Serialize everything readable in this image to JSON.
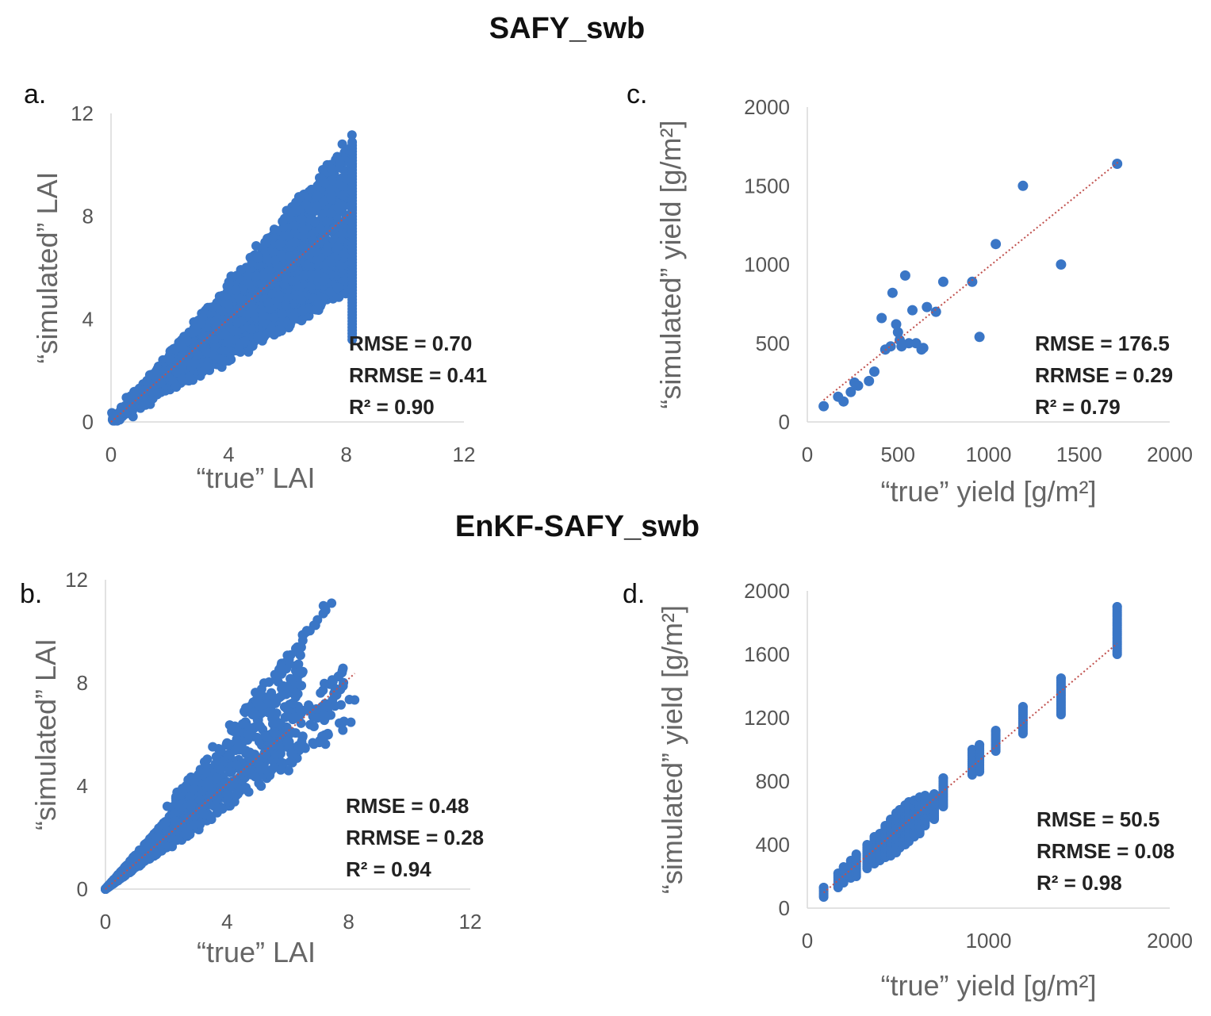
{
  "titles": {
    "top": "SAFY_swb",
    "bottom": "EnKF-SAFY_swb"
  },
  "colors": {
    "points": "#3a76c6",
    "trendline": "#c0504d",
    "axis": "#d9d9d9"
  },
  "chart_data": [
    {
      "id": "a",
      "type": "scatter",
      "panel_label": "a.",
      "xlabel": "“true” LAI",
      "ylabel": "“simulated” LAI",
      "xlim": [
        0,
        12
      ],
      "ylim": [
        0,
        12
      ],
      "xticks": [
        "0",
        "4",
        "8",
        "12"
      ],
      "yticks": [
        "0",
        "4",
        "8",
        "12"
      ],
      "xtick_values": [
        0,
        4,
        8,
        12
      ],
      "ytick_values": [
        0,
        4,
        8,
        12
      ],
      "stats": [
        "RMSE = 0.70",
        "RRMSE = 0.41",
        "R² = 0.90"
      ],
      "trendline": {
        "slope": 1.0,
        "intercept": 0.0,
        "x_range": [
          0,
          8.2
        ]
      },
      "cloud": {
        "kind": "dense",
        "x_max": 8.2,
        "spread": 0.33,
        "upper_ratio": 1.35,
        "lower_ratio": 0.62,
        "n": 2200,
        "seed": 7
      }
    },
    {
      "id": "b",
      "type": "scatter",
      "panel_label": "b.",
      "xlabel": "“true” LAI",
      "ylabel": "“simulated” LAI",
      "xlim": [
        0,
        12
      ],
      "ylim": [
        0,
        12
      ],
      "xticks": [
        "0",
        "4",
        "8",
        "12"
      ],
      "yticks": [
        "0",
        "4",
        "8",
        "12"
      ],
      "xtick_values": [
        0,
        4,
        8,
        12
      ],
      "ytick_values": [
        0,
        4,
        8,
        12
      ],
      "stats": [
        "RMSE = 0.48",
        "RRMSE = 0.28",
        "R² = 0.94"
      ],
      "trendline": {
        "slope": 1.02,
        "intercept": 0.0,
        "x_range": [
          0,
          8.2
        ]
      },
      "cloud": {
        "kind": "rays",
        "slopes": [
          1.5,
          1.3,
          1.08,
          1.0,
          0.93,
          0.82
        ],
        "ray_x_max": [
          7.6,
          6.6,
          8.1,
          8.2,
          8.2,
          8.2
        ],
        "n_core": 900,
        "n_ray": 70,
        "seed": 11
      }
    },
    {
      "id": "c",
      "type": "scatter",
      "panel_label": "c.",
      "xlabel": "“true” yield [g/m²]",
      "ylabel": "“simulated” yield [g/m²]",
      "xlim": [
        0,
        2000
      ],
      "ylim": [
        0,
        2000
      ],
      "xticks": [
        "0",
        "500",
        "1000",
        "1500",
        "2000"
      ],
      "yticks": [
        "0",
        "500",
        "1000",
        "1500",
        "2000"
      ],
      "xtick_values": [
        0,
        500,
        1000,
        1500,
        2000
      ],
      "ytick_values": [
        0,
        500,
        1000,
        1500,
        2000
      ],
      "stats": [
        "RMSE = 176.5",
        "RRMSE = 0.29",
        "R² = 0.79"
      ],
      "trendline": {
        "slope": 0.93,
        "intercept": 55,
        "x_range": [
          90,
          1720
        ]
      },
      "points": [
        [
          90,
          100
        ],
        [
          170,
          160
        ],
        [
          200,
          130
        ],
        [
          240,
          190
        ],
        [
          260,
          250
        ],
        [
          280,
          230
        ],
        [
          340,
          260
        ],
        [
          370,
          320
        ],
        [
          410,
          660
        ],
        [
          430,
          460
        ],
        [
          460,
          480
        ],
        [
          470,
          820
        ],
        [
          490,
          620
        ],
        [
          500,
          570
        ],
        [
          510,
          520
        ],
        [
          520,
          480
        ],
        [
          540,
          930
        ],
        [
          560,
          500
        ],
        [
          580,
          710
        ],
        [
          600,
          500
        ],
        [
          630,
          460
        ],
        [
          640,
          470
        ],
        [
          660,
          730
        ],
        [
          710,
          700
        ],
        [
          750,
          890
        ],
        [
          910,
          890
        ],
        [
          950,
          540
        ],
        [
          1040,
          1130
        ],
        [
          1190,
          1500
        ],
        [
          1400,
          1000
        ],
        [
          1710,
          1640
        ]
      ]
    },
    {
      "id": "d",
      "type": "scatter",
      "panel_label": "d.",
      "xlabel": "“true” yield [g/m²]",
      "ylabel": "“simulated” yield [g/m²]",
      "xlim": [
        0,
        2000
      ],
      "ylim": [
        0,
        2000
      ],
      "xticks": [
        "0",
        "1000",
        "2000"
      ],
      "yticks": [
        "0",
        "400",
        "800",
        "1200",
        "1600",
        "2000"
      ],
      "xtick_values": [
        0,
        1000,
        2000
      ],
      "ytick_values": [
        0,
        400,
        800,
        1200,
        1600,
        2000
      ],
      "stats": [
        "RMSE = 50.5",
        "RRMSE = 0.08",
        "R² = 0.98"
      ],
      "trendline": {
        "slope": 0.97,
        "intercept": 10,
        "x_range": [
          90,
          1710
        ]
      },
      "columns": [
        [
          90,
          70,
          130
        ],
        [
          170,
          130,
          220
        ],
        [
          200,
          160,
          260
        ],
        [
          240,
          190,
          300
        ],
        [
          270,
          200,
          340
        ],
        [
          330,
          250,
          400
        ],
        [
          370,
          280,
          450
        ],
        [
          400,
          300,
          470
        ],
        [
          430,
          320,
          520
        ],
        [
          460,
          330,
          560
        ],
        [
          490,
          350,
          600
        ],
        [
          510,
          380,
          620
        ],
        [
          540,
          400,
          650
        ],
        [
          560,
          420,
          670
        ],
        [
          590,
          450,
          680
        ],
        [
          620,
          470,
          700
        ],
        [
          650,
          520,
          710
        ],
        [
          700,
          560,
          720
        ],
        [
          750,
          640,
          820
        ],
        [
          910,
          840,
          1000
        ],
        [
          950,
          860,
          1030
        ],
        [
          1040,
          990,
          1120
        ],
        [
          1190,
          1100,
          1270
        ],
        [
          1400,
          1220,
          1450
        ],
        [
          1710,
          1600,
          1900
        ]
      ]
    }
  ]
}
